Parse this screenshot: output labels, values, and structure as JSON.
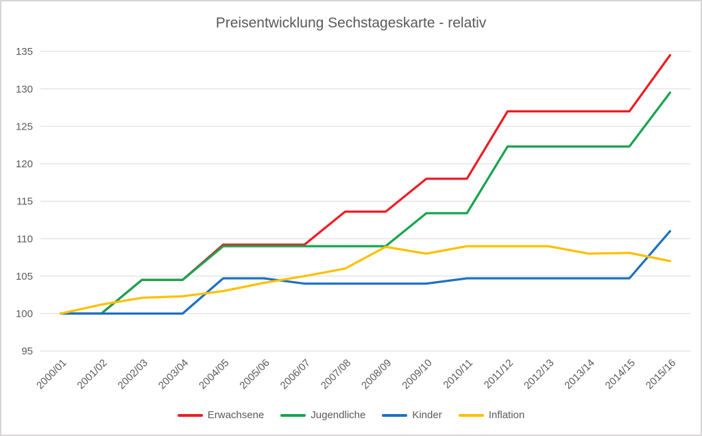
{
  "chart_data": {
    "type": "line",
    "title": "Preisentwicklung Sechstageskarte - relativ",
    "categories": [
      "2000/01",
      "2001/02",
      "2002/03",
      "2003/04",
      "2004/05",
      "2005/06",
      "2006/07",
      "2007/08",
      "2008/09",
      "2009/10",
      "2010/11",
      "2011/12",
      "2012/13",
      "2013/14",
      "2014/15",
      "2015/16"
    ],
    "series": [
      {
        "name": "Erwachsene",
        "color": "#ed1c24",
        "values": [
          100,
          100,
          104.5,
          104.5,
          109.2,
          109.2,
          109.2,
          113.6,
          113.6,
          118,
          118,
          127,
          127,
          127,
          127,
          134.5
        ]
      },
      {
        "name": "Jugendliche",
        "color": "#17a44d",
        "values": [
          100,
          100,
          104.5,
          104.5,
          109,
          109,
          109,
          109,
          109,
          113.4,
          113.4,
          122.3,
          122.3,
          122.3,
          122.3,
          129.5
        ]
      },
      {
        "name": "Kinder",
        "color": "#1e70c3",
        "values": [
          100,
          100,
          100,
          100,
          104.7,
          104.7,
          104,
          104,
          104,
          104,
          104.7,
          104.7,
          104.7,
          104.7,
          104.7,
          111
        ]
      },
      {
        "name": "Inflation",
        "color": "#ffc000",
        "values": [
          100,
          101.2,
          102.1,
          102.3,
          103,
          104.1,
          105,
          106,
          108.9,
          108,
          109,
          109,
          109,
          108,
          108.1,
          107
        ]
      }
    ],
    "ylim": [
      95,
      135
    ],
    "ytick_step": 5,
    "yticks": [
      95,
      100,
      105,
      110,
      115,
      120,
      125,
      130,
      135
    ],
    "xlabel": "",
    "ylabel": "",
    "grid": "horizontal",
    "legend_position": "bottom",
    "x_label_rotation": -45
  },
  "colors": {
    "background": "#ffffff",
    "border": "#d7d5d6",
    "gridline": "#d9d9d9",
    "axis_text": "#595959",
    "title_text": "#595959"
  }
}
